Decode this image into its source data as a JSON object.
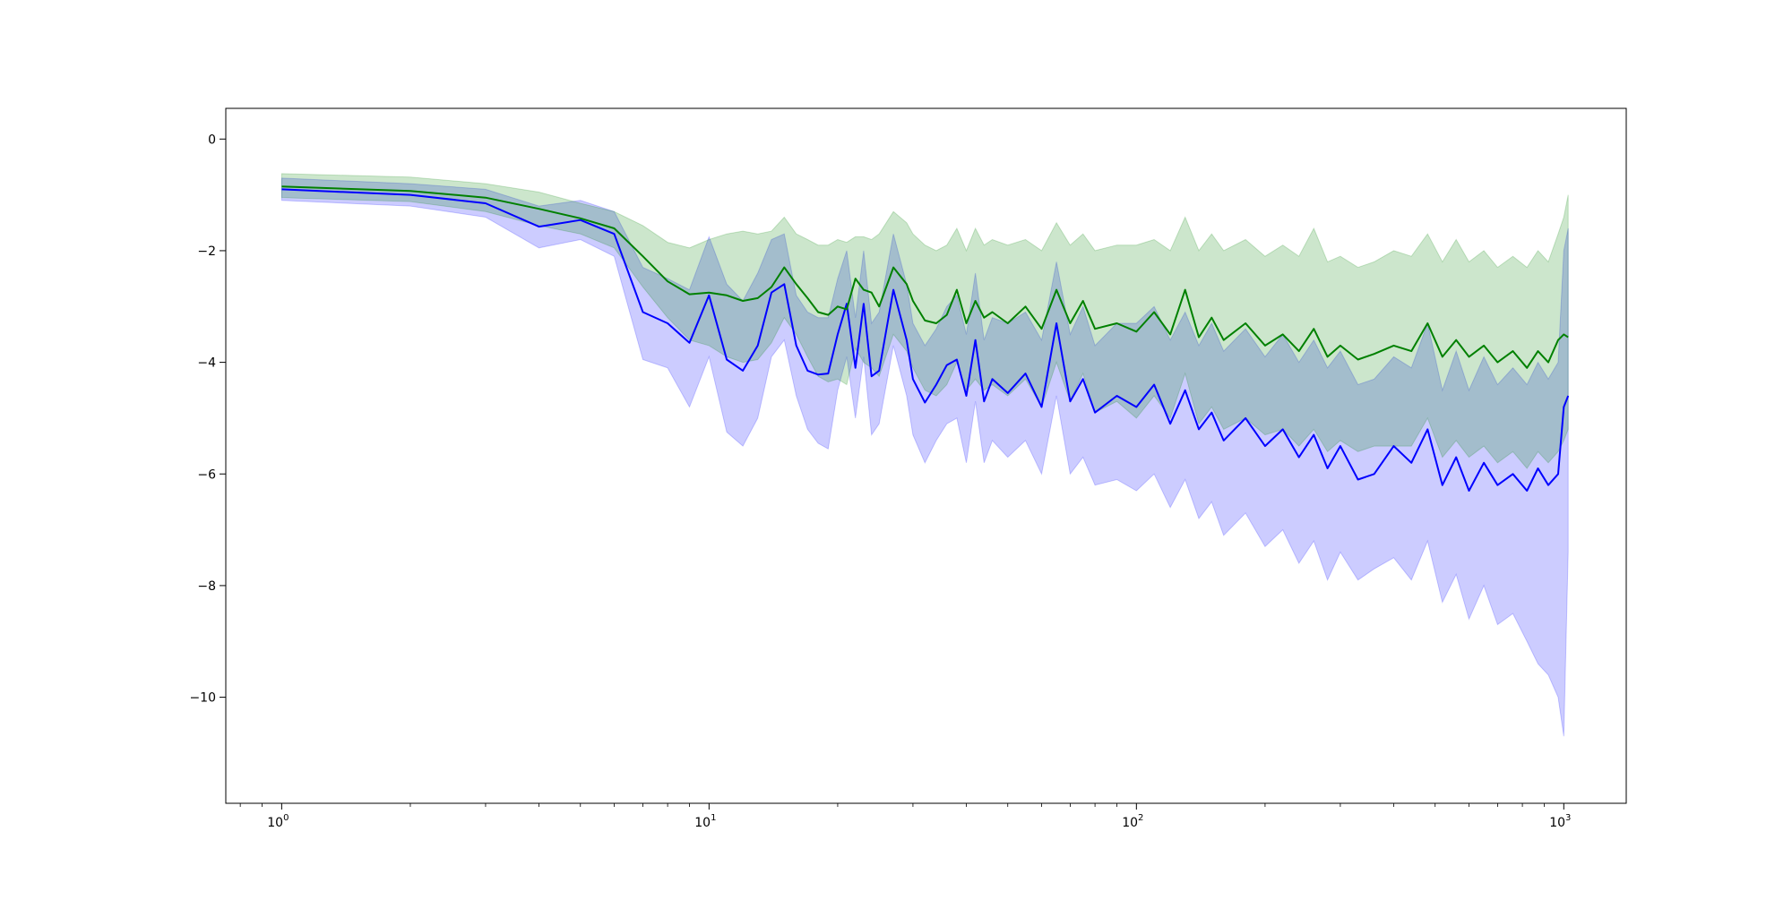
{
  "chart_data": {
    "type": "line",
    "title": "",
    "xlabel": "",
    "ylabel": "",
    "xscale": "log",
    "xlim": [
      0.74,
      1400
    ],
    "ylim": [
      -11.9,
      0.55
    ],
    "grid": false,
    "x_ticks": [
      {
        "value": 1,
        "base": "10",
        "exp": "0"
      },
      {
        "value": 10,
        "base": "10",
        "exp": "1"
      },
      {
        "value": 100,
        "base": "10",
        "exp": "2"
      },
      {
        "value": 1000,
        "base": "10",
        "exp": "3"
      }
    ],
    "y_ticks": [
      {
        "value": 0,
        "label": "0"
      },
      {
        "value": -2,
        "label": "−2"
      },
      {
        "value": -4,
        "label": "−4"
      },
      {
        "value": -6,
        "label": "−6"
      },
      {
        "value": -8,
        "label": "−8"
      },
      {
        "value": -10,
        "label": "−10"
      }
    ],
    "series": [
      {
        "color": "#0000ff",
        "band_color": "#0000ff",
        "band_opacity": 0.2,
        "points": [
          [
            1,
            -0.9,
            -0.7,
            -1.1
          ],
          [
            2,
            -1.0,
            -0.8,
            -1.2
          ],
          [
            3,
            -1.15,
            -0.9,
            -1.4
          ],
          [
            4,
            -1.57,
            -1.2,
            -1.95
          ],
          [
            5,
            -1.45,
            -1.1,
            -1.8
          ],
          [
            6,
            -1.7,
            -1.3,
            -2.1
          ],
          [
            7,
            -3.1,
            -2.3,
            -3.95
          ],
          [
            8,
            -3.3,
            -2.5,
            -4.1
          ],
          [
            9,
            -3.65,
            -2.7,
            -4.8
          ],
          [
            10,
            -2.8,
            -1.75,
            -3.9
          ],
          [
            11,
            -3.95,
            -2.6,
            -5.25
          ],
          [
            12,
            -4.15,
            -2.9,
            -5.5
          ],
          [
            13,
            -3.7,
            -2.4,
            -5.0
          ],
          [
            14,
            -2.75,
            -1.8,
            -3.9
          ],
          [
            15,
            -2.6,
            -1.7,
            -3.6
          ],
          [
            16,
            -3.7,
            -2.8,
            -4.6
          ],
          [
            17,
            -4.15,
            -3.1,
            -5.2
          ],
          [
            18,
            -4.22,
            -3.2,
            -5.45
          ],
          [
            19,
            -4.2,
            -3.2,
            -5.55
          ],
          [
            20,
            -3.5,
            -2.5,
            -4.5
          ],
          [
            21,
            -2.95,
            -2.0,
            -3.9
          ],
          [
            22,
            -4.1,
            -3.2,
            -5.0
          ],
          [
            23,
            -2.95,
            -2.0,
            -3.9
          ],
          [
            24,
            -4.25,
            -3.3,
            -5.3
          ],
          [
            25,
            -4.15,
            -3.1,
            -5.1
          ],
          [
            27,
            -2.7,
            -1.7,
            -3.7
          ],
          [
            29,
            -3.6,
            -2.6,
            -4.6
          ],
          [
            30,
            -4.3,
            -3.3,
            -5.3
          ],
          [
            32,
            -4.72,
            -3.7,
            -5.8
          ],
          [
            34,
            -4.4,
            -3.4,
            -5.4
          ],
          [
            36,
            -4.05,
            -3.0,
            -5.1
          ],
          [
            38,
            -3.95,
            -2.8,
            -5.0
          ],
          [
            40,
            -4.6,
            -3.5,
            -5.8
          ],
          [
            42,
            -3.6,
            -2.4,
            -4.7
          ],
          [
            44,
            -4.7,
            -3.6,
            -5.8
          ],
          [
            46,
            -4.3,
            -3.2,
            -5.4
          ],
          [
            50,
            -4.55,
            -3.3,
            -5.7
          ],
          [
            55,
            -4.2,
            -3.1,
            -5.4
          ],
          [
            60,
            -4.8,
            -3.6,
            -6.0
          ],
          [
            65,
            -3.3,
            -2.2,
            -4.6
          ],
          [
            70,
            -4.7,
            -3.5,
            -6.0
          ],
          [
            75,
            -4.3,
            -3.0,
            -5.7
          ],
          [
            80,
            -4.9,
            -3.7,
            -6.2
          ],
          [
            90,
            -4.6,
            -3.3,
            -6.1
          ],
          [
            100,
            -4.8,
            -3.3,
            -6.3
          ],
          [
            110,
            -4.4,
            -3.0,
            -6.0
          ],
          [
            120,
            -5.1,
            -3.6,
            -6.6
          ],
          [
            130,
            -4.5,
            -3.1,
            -6.1
          ],
          [
            140,
            -5.2,
            -3.7,
            -6.8
          ],
          [
            150,
            -4.9,
            -3.3,
            -6.5
          ],
          [
            160,
            -5.4,
            -3.8,
            -7.1
          ],
          [
            180,
            -5.0,
            -3.4,
            -6.7
          ],
          [
            200,
            -5.5,
            -3.9,
            -7.3
          ],
          [
            220,
            -5.2,
            -3.5,
            -7.0
          ],
          [
            240,
            -5.7,
            -4.0,
            -7.6
          ],
          [
            260,
            -5.3,
            -3.6,
            -7.2
          ],
          [
            280,
            -5.9,
            -4.1,
            -7.9
          ],
          [
            300,
            -5.5,
            -3.8,
            -7.4
          ],
          [
            330,
            -6.1,
            -4.4,
            -7.9
          ],
          [
            360,
            -6.0,
            -4.3,
            -7.7
          ],
          [
            400,
            -5.5,
            -3.9,
            -7.5
          ],
          [
            440,
            -5.8,
            -4.1,
            -7.9
          ],
          [
            480,
            -5.2,
            -3.3,
            -7.2
          ],
          [
            520,
            -6.2,
            -4.5,
            -8.3
          ],
          [
            560,
            -5.7,
            -3.8,
            -7.8
          ],
          [
            600,
            -6.3,
            -4.5,
            -8.6
          ],
          [
            650,
            -5.8,
            -3.9,
            -8.0
          ],
          [
            700,
            -6.2,
            -4.4,
            -8.7
          ],
          [
            760,
            -6.0,
            -4.1,
            -8.5
          ],
          [
            820,
            -6.3,
            -4.4,
            -9.0
          ],
          [
            870,
            -5.9,
            -4.0,
            -9.4
          ],
          [
            920,
            -6.2,
            -4.3,
            -9.6
          ],
          [
            970,
            -6.0,
            -4.0,
            -10.0
          ],
          [
            1000,
            -4.8,
            -2.0,
            -10.7
          ],
          [
            1024,
            -4.6,
            -1.6,
            -7.4
          ]
        ]
      },
      {
        "color": "#008000",
        "band_color": "#008000",
        "band_opacity": 0.2,
        "points": [
          [
            1,
            -0.85,
            -0.62,
            -1.05
          ],
          [
            2,
            -0.93,
            -0.68,
            -1.12
          ],
          [
            3,
            -1.05,
            -0.8,
            -1.3
          ],
          [
            4,
            -1.25,
            -0.95,
            -1.55
          ],
          [
            5,
            -1.42,
            -1.15,
            -1.7
          ],
          [
            6,
            -1.6,
            -1.3,
            -1.95
          ],
          [
            7,
            -2.1,
            -1.55,
            -2.65
          ],
          [
            8,
            -2.55,
            -1.85,
            -3.2
          ],
          [
            9,
            -2.78,
            -1.95,
            -3.6
          ],
          [
            10,
            -2.75,
            -1.8,
            -3.7
          ],
          [
            11,
            -2.8,
            -1.7,
            -3.9
          ],
          [
            12,
            -2.9,
            -1.65,
            -4.0
          ],
          [
            13,
            -2.85,
            -1.7,
            -3.95
          ],
          [
            14,
            -2.65,
            -1.65,
            -3.65
          ],
          [
            15,
            -2.3,
            -1.4,
            -3.2
          ],
          [
            16,
            -2.6,
            -1.7,
            -3.5
          ],
          [
            17,
            -2.85,
            -1.8,
            -3.9
          ],
          [
            18,
            -3.1,
            -1.9,
            -4.25
          ],
          [
            19,
            -3.15,
            -1.9,
            -4.35
          ],
          [
            20,
            -3.0,
            -1.8,
            -4.3
          ],
          [
            21,
            -3.05,
            -1.85,
            -4.4
          ],
          [
            22,
            -2.5,
            -1.75,
            -3.75
          ],
          [
            23,
            -2.7,
            -1.75,
            -4.0
          ],
          [
            24,
            -2.75,
            -1.8,
            -4.1
          ],
          [
            25,
            -3.0,
            -1.7,
            -4.25
          ],
          [
            27,
            -2.3,
            -1.3,
            -3.5
          ],
          [
            29,
            -2.6,
            -1.5,
            -3.8
          ],
          [
            30,
            -2.9,
            -1.7,
            -4.1
          ],
          [
            32,
            -3.25,
            -1.9,
            -4.5
          ],
          [
            34,
            -3.3,
            -2.0,
            -4.6
          ],
          [
            36,
            -3.15,
            -1.9,
            -4.4
          ],
          [
            38,
            -2.7,
            -1.6,
            -4.0
          ],
          [
            40,
            -3.3,
            -2.0,
            -4.5
          ],
          [
            42,
            -2.9,
            -1.6,
            -4.3
          ],
          [
            44,
            -3.2,
            -1.9,
            -4.5
          ],
          [
            46,
            -3.1,
            -1.8,
            -4.4
          ],
          [
            50,
            -3.3,
            -1.9,
            -4.6
          ],
          [
            55,
            -3.0,
            -1.8,
            -4.3
          ],
          [
            60,
            -3.4,
            -2.0,
            -4.8
          ],
          [
            65,
            -2.7,
            -1.5,
            -4.0
          ],
          [
            70,
            -3.3,
            -1.9,
            -4.7
          ],
          [
            75,
            -2.9,
            -1.7,
            -4.2
          ],
          [
            80,
            -3.4,
            -2.0,
            -4.9
          ],
          [
            90,
            -3.3,
            -1.9,
            -4.7
          ],
          [
            100,
            -3.45,
            -1.9,
            -5.0
          ],
          [
            110,
            -3.1,
            -1.8,
            -4.6
          ],
          [
            120,
            -3.5,
            -2.0,
            -5.0
          ],
          [
            130,
            -2.7,
            -1.4,
            -4.2
          ],
          [
            140,
            -3.55,
            -2.0,
            -5.1
          ],
          [
            150,
            -3.2,
            -1.7,
            -4.8
          ],
          [
            160,
            -3.6,
            -2.0,
            -5.2
          ],
          [
            180,
            -3.3,
            -1.8,
            -5.0
          ],
          [
            200,
            -3.7,
            -2.1,
            -5.3
          ],
          [
            220,
            -3.5,
            -1.9,
            -5.2
          ],
          [
            240,
            -3.8,
            -2.1,
            -5.5
          ],
          [
            260,
            -3.4,
            -1.6,
            -5.2
          ],
          [
            280,
            -3.9,
            -2.2,
            -5.6
          ],
          [
            300,
            -3.7,
            -2.1,
            -5.4
          ],
          [
            330,
            -3.95,
            -2.3,
            -5.6
          ],
          [
            360,
            -3.85,
            -2.2,
            -5.5
          ],
          [
            400,
            -3.7,
            -2.0,
            -5.5
          ],
          [
            440,
            -3.8,
            -2.1,
            -5.5
          ],
          [
            480,
            -3.3,
            -1.7,
            -5.0
          ],
          [
            520,
            -3.9,
            -2.2,
            -5.7
          ],
          [
            560,
            -3.6,
            -1.8,
            -5.4
          ],
          [
            600,
            -3.9,
            -2.2,
            -5.7
          ],
          [
            650,
            -3.7,
            -2.0,
            -5.5
          ],
          [
            700,
            -4.0,
            -2.3,
            -5.8
          ],
          [
            760,
            -3.8,
            -2.1,
            -5.6
          ],
          [
            820,
            -4.1,
            -2.3,
            -5.9
          ],
          [
            870,
            -3.8,
            -2.0,
            -5.6
          ],
          [
            920,
            -4.0,
            -2.2,
            -5.8
          ],
          [
            970,
            -3.6,
            -1.7,
            -5.6
          ],
          [
            1000,
            -3.5,
            -1.4,
            -5.4
          ],
          [
            1024,
            -3.55,
            -1.0,
            -5.2
          ]
        ]
      }
    ]
  }
}
